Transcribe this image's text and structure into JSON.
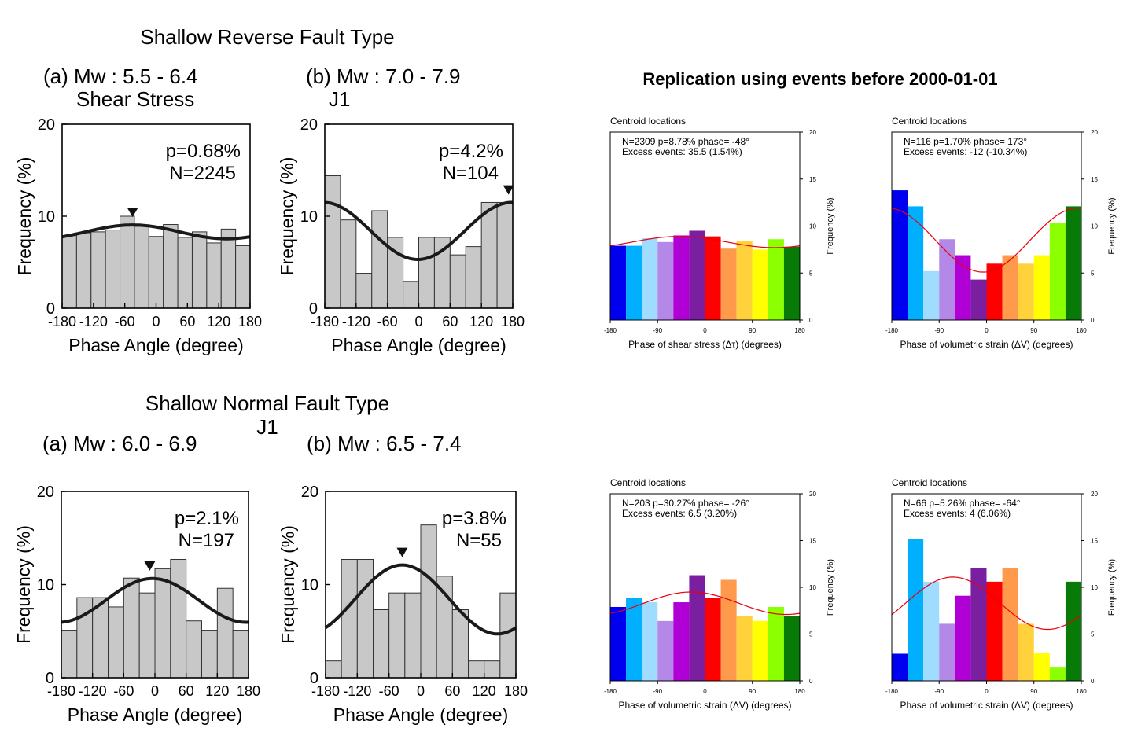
{
  "left_panel": {
    "reverse_title": "Shallow Reverse Fault Type",
    "normal_title": "Shallow Normal Fault Type",
    "normal_subtitle": "J1"
  },
  "right_panel": {
    "title": "Replication using events before 2000-01-01"
  },
  "colors": {
    "gray_bar": "#c8c8c8",
    "fit_left": "#1a1a1a",
    "fit_right": "#e8000b",
    "rainbow": [
      "#0000f0",
      "#00b0ff",
      "#9fdcff",
      "#b388e6",
      "#b000d6",
      "#7a1fa0",
      "#ff0000",
      "#ff9a4d",
      "#ffd23c",
      "#ffff00",
      "#8cff00",
      "#087a08"
    ]
  },
  "chart_data": [
    {
      "id": "rev_a",
      "type": "bar",
      "style": "gray",
      "header": "(a) Mw : 5.5 - 6.4",
      "subheader": "Shear Stress",
      "p_text": "p=0.68%",
      "n_text": "N=2245",
      "xlabel": "Phase Angle (degree)",
      "ylabel": "Frequency (%)",
      "xlim": [
        -180,
        180
      ],
      "ylim": [
        0,
        20
      ],
      "xticks": [
        "-180",
        "-120",
        "-60",
        "0",
        "60",
        "120",
        "180"
      ],
      "yticks": [
        "0",
        "10",
        "20"
      ],
      "values": [
        7.9,
        8.2,
        8.3,
        8.5,
        10.0,
        8.9,
        7.8,
        9.1,
        7.7,
        8.3,
        7.1,
        8.6,
        6.8
      ],
      "fit": {
        "mean": 8.3,
        "amp": 0.75,
        "peak_deg": -45
      },
      "marker_deg": -45
    },
    {
      "id": "rev_b",
      "type": "bar",
      "style": "gray",
      "header": "(b) Mw : 7.0 - 7.9",
      "subheader": "J1",
      "p_text": "p=4.2%",
      "n_text": "N=104",
      "xlabel": "Phase Angle (degree)",
      "ylabel": "Frequency (%)",
      "xlim": [
        -180,
        180
      ],
      "ylim": [
        0,
        20
      ],
      "xticks": [
        "-180",
        "-120",
        "-60",
        "0",
        "60",
        "120",
        "180"
      ],
      "yticks": [
        "0",
        "10",
        "20"
      ],
      "values": [
        14.4,
        9.6,
        3.8,
        10.6,
        7.7,
        2.9,
        7.7,
        7.7,
        5.8,
        6.7,
        11.5,
        11.5
      ],
      "fit": {
        "mean": 8.4,
        "amp": 3.1,
        "peak_deg": 178
      },
      "marker_deg": 172
    },
    {
      "id": "nor_a",
      "type": "bar",
      "style": "gray",
      "header": "(a) Mw : 6.0 - 6.9",
      "subheader": "",
      "p_text": "p=2.1%",
      "n_text": "N=197",
      "xlabel": "Phase Angle (degree)",
      "ylabel": "Frequency (%)",
      "xlim": [
        -180,
        180
      ],
      "ylim": [
        0,
        20
      ],
      "xticks": [
        "-180",
        "-120",
        "-60",
        "0",
        "60",
        "120",
        "180"
      ],
      "yticks": [
        "0",
        "10",
        "20"
      ],
      "values": [
        5.1,
        8.6,
        8.6,
        7.6,
        10.7,
        9.1,
        11.7,
        12.7,
        6.1,
        5.1,
        9.6,
        5.1
      ],
      "fit": {
        "mean": 8.3,
        "amp": 2.35,
        "peak_deg": -5
      },
      "marker_deg": -10
    },
    {
      "id": "nor_b",
      "type": "bar",
      "style": "gray",
      "header": "(b) Mw : 6.5 - 7.4",
      "subheader": "",
      "p_text": "p=3.8%",
      "n_text": "N=55",
      "xlabel": "Phase Angle (degree)",
      "ylabel": "Frequency (%)",
      "xlim": [
        -180,
        180
      ],
      "ylim": [
        0,
        20
      ],
      "xticks": [
        "-180",
        "-120",
        "-60",
        "0",
        "60",
        "120",
        "180"
      ],
      "yticks": [
        "0",
        "10",
        "20"
      ],
      "values": [
        1.8,
        12.7,
        12.7,
        7.3,
        9.1,
        9.1,
        16.4,
        10.9,
        7.3,
        1.8,
        1.8,
        9.1
      ],
      "fit": {
        "mean": 8.4,
        "amp": 3.7,
        "peak_deg": -35
      },
      "marker_deg": -35
    },
    {
      "id": "rep_1",
      "type": "bar",
      "style": "rainbow",
      "caption": "Centroid locations",
      "stats1": "N=2309   p=8.78%   phase= -48°",
      "stats2": "Excess events: 35.5 (1.54%)",
      "xlabel": "Phase of shear stress (Δτ) (degrees)",
      "ylabel": "Frequency (%)",
      "xlim": [
        -180,
        180
      ],
      "ylim": [
        0,
        20
      ],
      "xticks": [
        "-180",
        "-90",
        "0",
        "90",
        "180"
      ],
      "yticks": [
        "0",
        "5",
        "10",
        "15",
        "20"
      ],
      "values": [
        7.9,
        7.9,
        8.7,
        8.3,
        9.0,
        9.5,
        8.9,
        7.6,
        8.4,
        7.5,
        8.6,
        7.8
      ],
      "fit": {
        "mean": 8.3,
        "amp": 0.6,
        "peak_deg": -48
      }
    },
    {
      "id": "rep_2",
      "type": "bar",
      "style": "rainbow",
      "caption": "Centroid locations",
      "stats1": "N=116   p=1.70%   phase= 173°",
      "stats2": "Excess events: -12 (-10.34%)",
      "xlabel": "Phase of volumetric strain (ΔV) (degrees)",
      "ylabel": "Frequency (%)",
      "xlim": [
        -180,
        180
      ],
      "ylim": [
        0,
        20
      ],
      "xticks": [
        "-180",
        "-90",
        "0",
        "90",
        "180"
      ],
      "yticks": [
        "0",
        "5",
        "10",
        "15",
        "20"
      ],
      "values": [
        13.8,
        12.1,
        5.2,
        8.6,
        6.9,
        4.3,
        6.0,
        6.9,
        6.0,
        6.9,
        10.3,
        12.1
      ],
      "fit": {
        "mean": 8.5,
        "amp": 3.4,
        "peak_deg": 173
      }
    },
    {
      "id": "rep_3",
      "type": "bar",
      "style": "rainbow",
      "caption": "Centroid locations",
      "stats1": "N=203   p=30.27%   phase= -26°",
      "stats2": "Excess events: 6.5 (3.20%)",
      "xlabel": "Phase of volumetric strain (ΔV) (degrees)",
      "ylabel": "Frequency (%)",
      "xlim": [
        -180,
        180
      ],
      "ylim": [
        0,
        20
      ],
      "xticks": [
        "-180",
        "-90",
        "0",
        "90",
        "180"
      ],
      "yticks": [
        "0",
        "5",
        "10",
        "15",
        "20"
      ],
      "values": [
        7.9,
        8.9,
        8.4,
        6.4,
        8.4,
        11.3,
        8.9,
        10.8,
        6.9,
        6.4,
        7.9,
        6.9
      ],
      "fit": {
        "mean": 8.3,
        "amp": 1.2,
        "peak_deg": -26
      }
    },
    {
      "id": "rep_4",
      "type": "bar",
      "style": "rainbow",
      "caption": "Centroid locations",
      "stats1": "N=66   p=5.26%   phase= -64°",
      "stats2": "Excess events: 4 (6.06%)",
      "xlabel": "Phase of volumetric strain (ΔV) (degrees)",
      "ylabel": "Frequency (%)",
      "xlim": [
        -180,
        180
      ],
      "ylim": [
        0,
        20
      ],
      "xticks": [
        "-180",
        "-90",
        "0",
        "90",
        "180"
      ],
      "yticks": [
        "0",
        "5",
        "10",
        "15",
        "20"
      ],
      "values": [
        2.9,
        15.2,
        10.6,
        6.1,
        9.1,
        12.1,
        10.6,
        12.1,
        6.1,
        3.0,
        1.5,
        10.6
      ],
      "fit": {
        "mean": 8.3,
        "amp": 2.8,
        "peak_deg": -64
      }
    }
  ]
}
